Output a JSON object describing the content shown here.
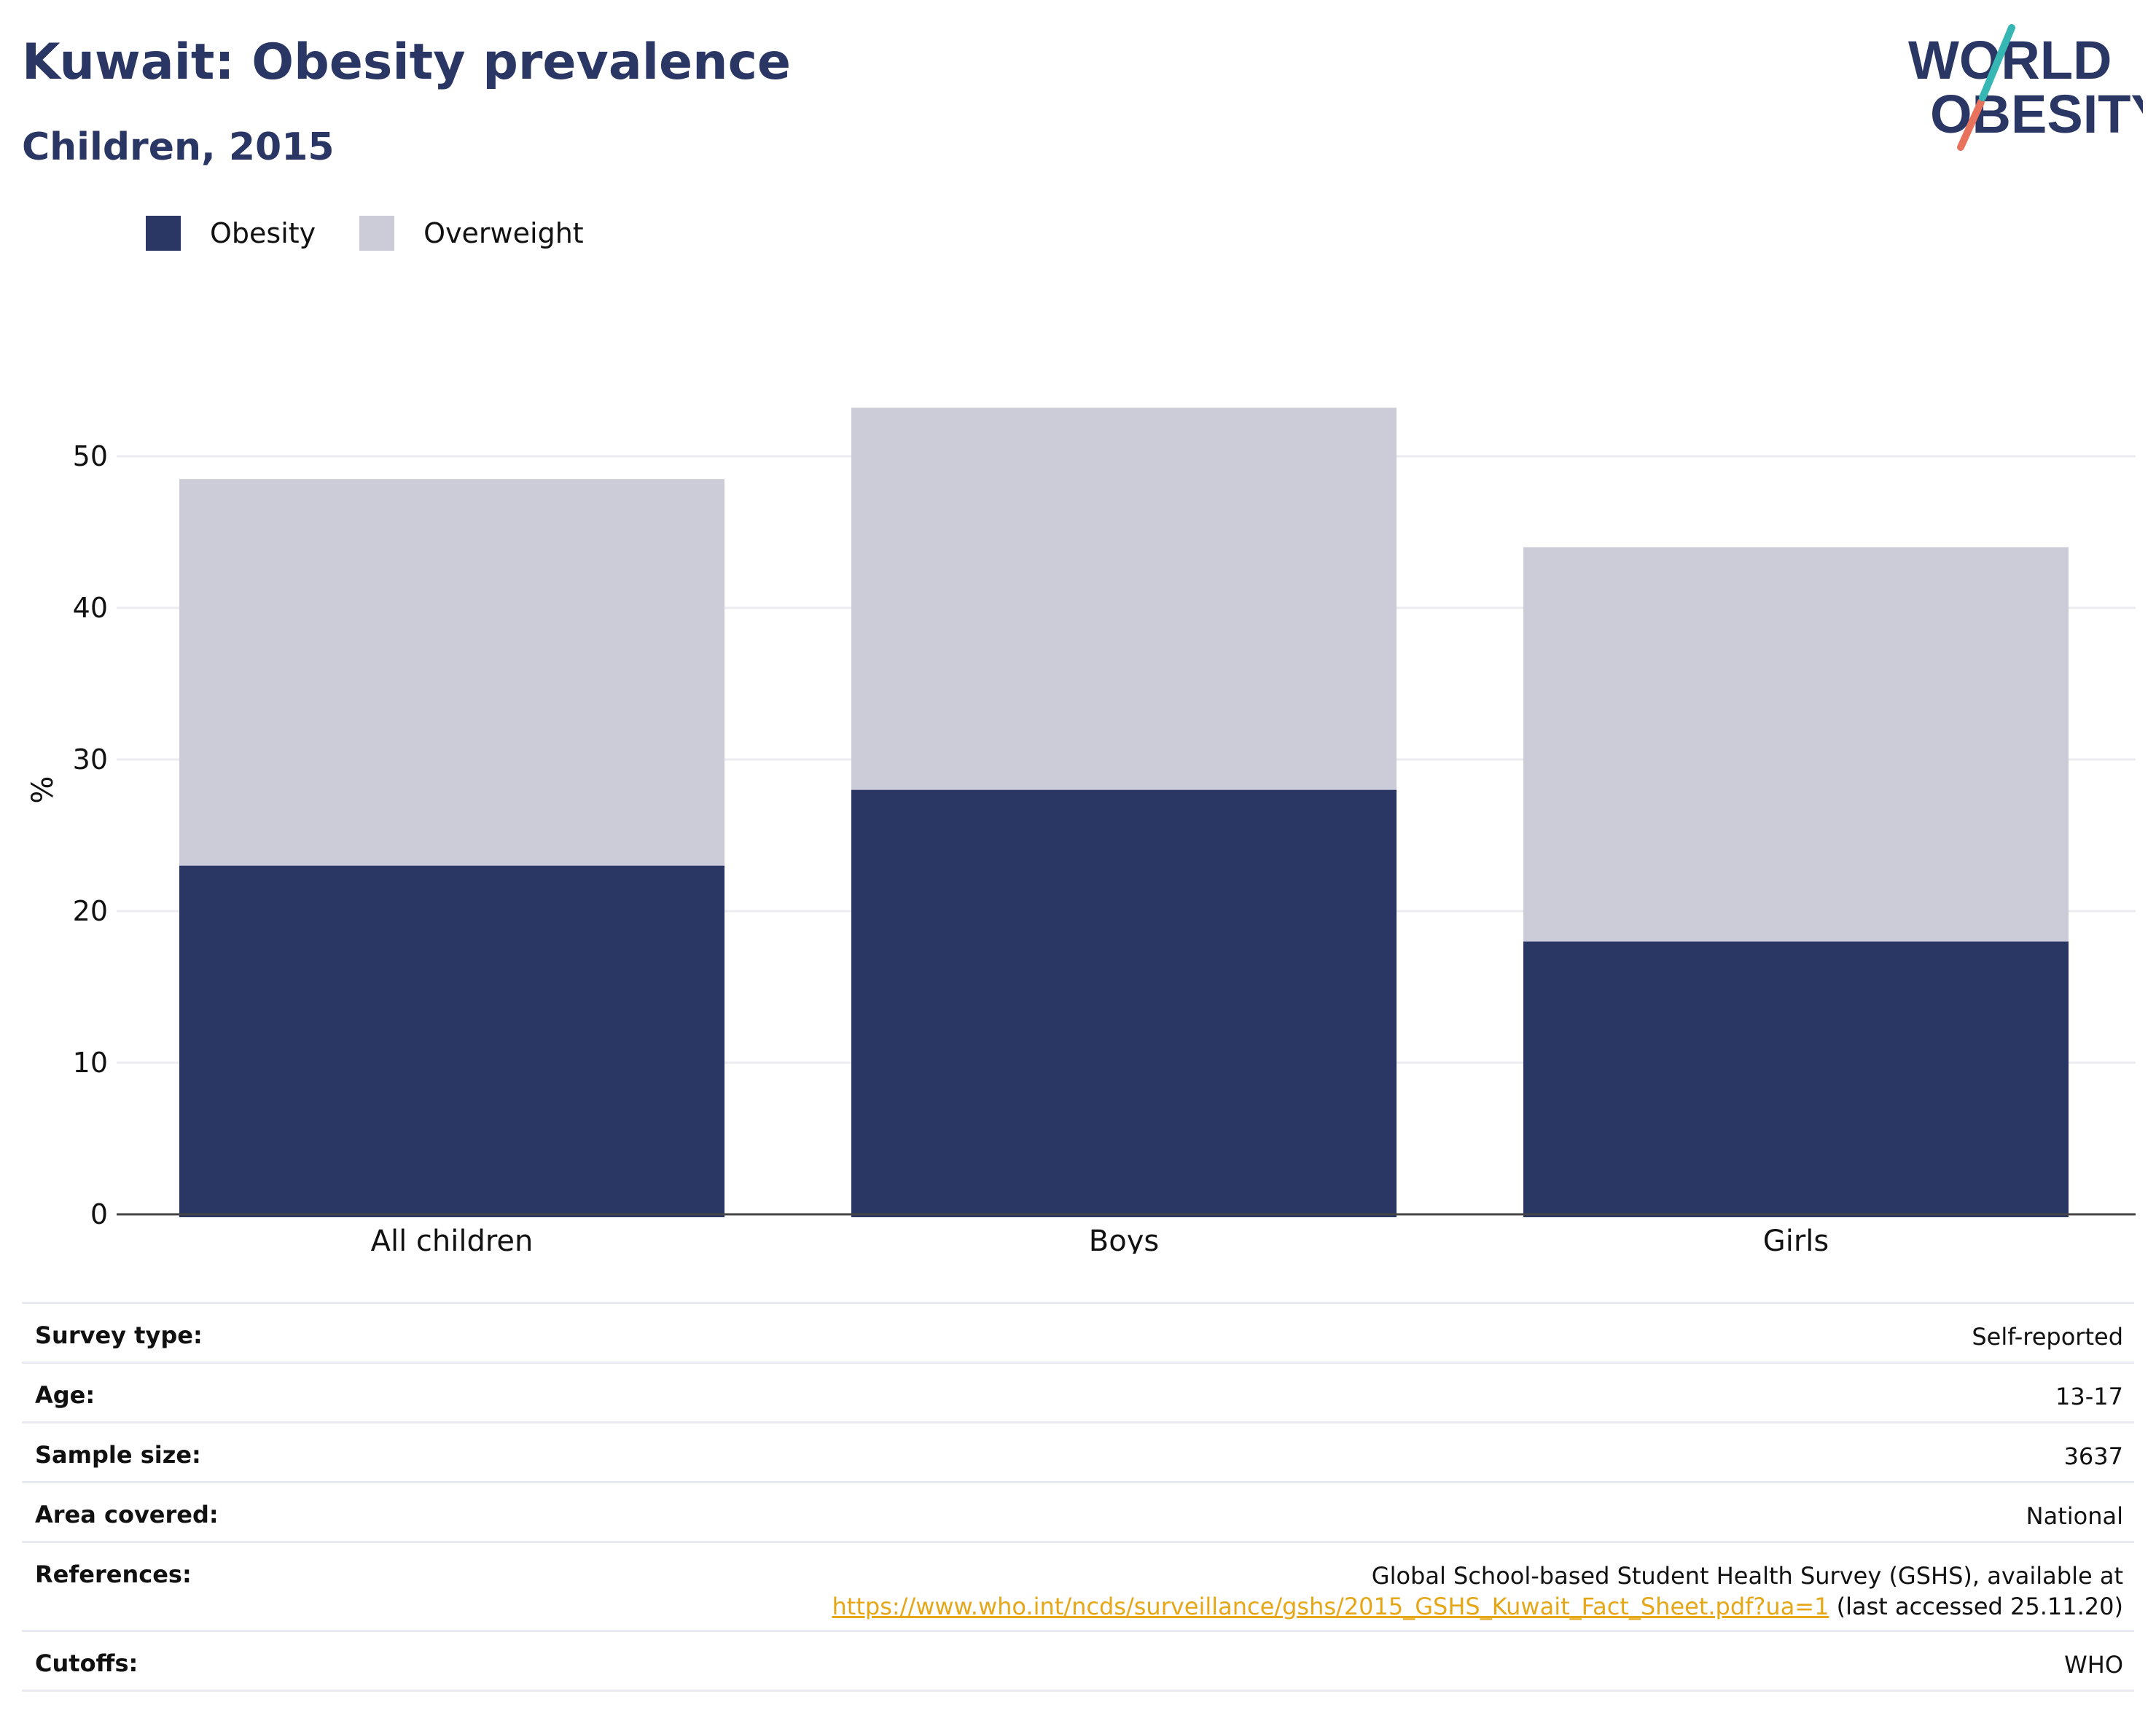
{
  "title": "Kuwait: Obesity prevalence",
  "subtitle": "Children, 2015",
  "logo": {
    "line1": "WORLD",
    "line2": "OBESITY"
  },
  "colors": {
    "obesity": "#2a3764",
    "overweight": "#cbccd8",
    "title": "#2a3764",
    "accent_teal": "#36b7b4",
    "accent_coral": "#e8725c",
    "link": "#e5a718"
  },
  "legend": {
    "items": [
      "Obesity",
      "Overweight"
    ]
  },
  "chart_data": {
    "type": "bar",
    "stacked": true,
    "categories": [
      "All children",
      "Boys",
      "Girls"
    ],
    "series": [
      {
        "name": "Obesity",
        "values": [
          23,
          28,
          18
        ]
      },
      {
        "name": "Overweight",
        "values": [
          25.5,
          25.2,
          26
        ]
      }
    ],
    "xlabel": "",
    "ylabel": "%",
    "yticks": [
      "0",
      "10",
      "20",
      "30",
      "40",
      "50"
    ],
    "ylim": [
      0,
      56
    ],
    "grid": true,
    "legend_position": "top-left"
  },
  "info": {
    "rows": [
      {
        "label": "Survey type:",
        "value": "Self-reported"
      },
      {
        "label": "Age:",
        "value": "13-17"
      },
      {
        "label": "Sample size:",
        "value": "3637"
      },
      {
        "label": "Area covered:",
        "value": "National"
      },
      {
        "label": "References:",
        "value": "Global School-based Student Health Survey (GSHS), available at",
        "link": "https://www.who.int/ncds/surveillance/gshs/2015_GSHS_Kuwait_Fact_Sheet.pdf?ua=1",
        "suffix": " (last accessed 25.11.20)"
      },
      {
        "label": "Cutoffs:",
        "value": "WHO"
      }
    ]
  }
}
